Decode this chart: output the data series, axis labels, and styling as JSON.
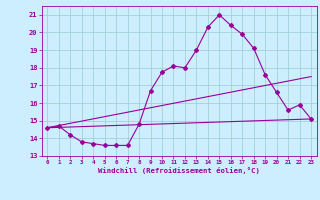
{
  "xlabel": "Windchill (Refroidissement éolien,°C)",
  "background_color": "#cceeff",
  "line_color": "#990099",
  "grid_color": "#99cccc",
  "xlim": [
    -0.5,
    23.5
  ],
  "ylim": [
    13,
    21.5
  ],
  "yticks": [
    13,
    14,
    15,
    16,
    17,
    18,
    19,
    20,
    21
  ],
  "xticks": [
    0,
    1,
    2,
    3,
    4,
    5,
    6,
    7,
    8,
    9,
    10,
    11,
    12,
    13,
    14,
    15,
    16,
    17,
    18,
    19,
    20,
    21,
    22,
    23
  ],
  "line1_x": [
    0,
    1,
    2,
    3,
    4,
    5,
    6,
    7,
    8,
    9,
    10,
    11,
    12,
    13,
    14,
    15,
    16,
    17,
    18,
    19,
    20,
    21,
    22,
    23
  ],
  "line1_y": [
    14.6,
    14.7,
    14.2,
    13.8,
    13.7,
    13.6,
    13.6,
    13.6,
    14.8,
    16.7,
    17.75,
    18.1,
    18.0,
    19.0,
    20.3,
    21.0,
    20.4,
    19.9,
    19.1,
    17.6,
    16.6,
    15.6,
    15.9,
    15.1
  ],
  "line2_x": [
    0,
    23
  ],
  "line2_y": [
    14.6,
    17.5
  ],
  "line3_x": [
    0,
    23
  ],
  "line3_y": [
    14.6,
    15.1
  ]
}
